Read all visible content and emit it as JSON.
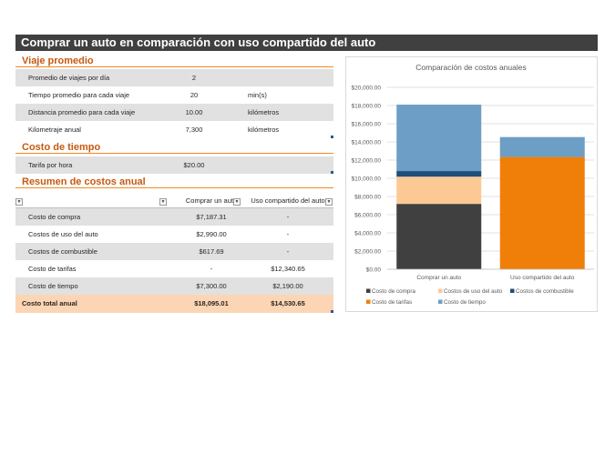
{
  "title": "Comprar un auto en comparación con uso compartido del auto",
  "viaje": {
    "heading": "Viaje promedio",
    "rows": [
      {
        "label": "Promedio de viajes por día",
        "value": "2",
        "unit": ""
      },
      {
        "label": "Tiempo promedio para cada viaje",
        "value": "20",
        "unit": "min(s)"
      },
      {
        "label": "Distancia promedio para cada viaje",
        "value": "10.00",
        "unit": "kilómetros"
      },
      {
        "label": "Kilometraje anual",
        "value": "7,300",
        "unit": "kilómetros"
      }
    ]
  },
  "tiempo": {
    "heading": "Costo de tiempo",
    "rows": [
      {
        "label": "Tarifa por hora",
        "value": "$20.00",
        "unit": ""
      }
    ]
  },
  "resumen": {
    "heading": "Resumen de costos anual",
    "col1": "Comprar un auto",
    "col2": "Uso compartido del auto",
    "rows": [
      {
        "label": "Costo de compra",
        "c1": "$7,187.31",
        "c2": "-"
      },
      {
        "label": "Costos de uso del auto",
        "c1": "$2,990.00",
        "c2": "-"
      },
      {
        "label": "Costos de combustible",
        "c1": "$617.69",
        "c2": "-"
      },
      {
        "label": "Costo de tarifas",
        "c1": "-",
        "c2": "$12,340.65"
      },
      {
        "label": "Costo de tiempo",
        "c1": "$7,300.00",
        "c2": "$2,190.00"
      }
    ],
    "total": {
      "label": "Costo total anual",
      "c1": "$18,095.01",
      "c2": "$14,530.65"
    }
  },
  "chart_data": {
    "type": "bar",
    "stacked": true,
    "title": "Comparación de costos anuales",
    "categories": [
      "Comprar un auto",
      "Uso compartido del auto"
    ],
    "series": [
      {
        "name": "Costo de compra",
        "color": "#404040",
        "values": [
          7187.31,
          0
        ]
      },
      {
        "name": "Costos de uso del auto",
        "color": "#fcc994",
        "values": [
          2990.0,
          0
        ]
      },
      {
        "name": "Costos de combustible",
        "color": "#1f4e79",
        "values": [
          617.69,
          0
        ]
      },
      {
        "name": "Costo de tarifas",
        "color": "#f07f09",
        "values": [
          0,
          12340.65
        ]
      },
      {
        "name": "Costo de tiempo",
        "color": "#6d9ec6",
        "values": [
          7300.0,
          2190.0
        ]
      }
    ],
    "ylim": [
      0,
      20000
    ],
    "yticks": [
      0,
      2000,
      4000,
      6000,
      8000,
      10000,
      12000,
      14000,
      16000,
      18000,
      20000
    ],
    "ytick_labels": [
      "$0.00",
      "$2,000.00",
      "$4,000.00",
      "$6,000.00",
      "$8,000.00",
      "$10,000.00",
      "$12,000.00",
      "$14,000.00",
      "$16,000.00",
      "$18,000.00",
      "$20,000.00"
    ],
    "grid": true,
    "legend": "bottom"
  }
}
